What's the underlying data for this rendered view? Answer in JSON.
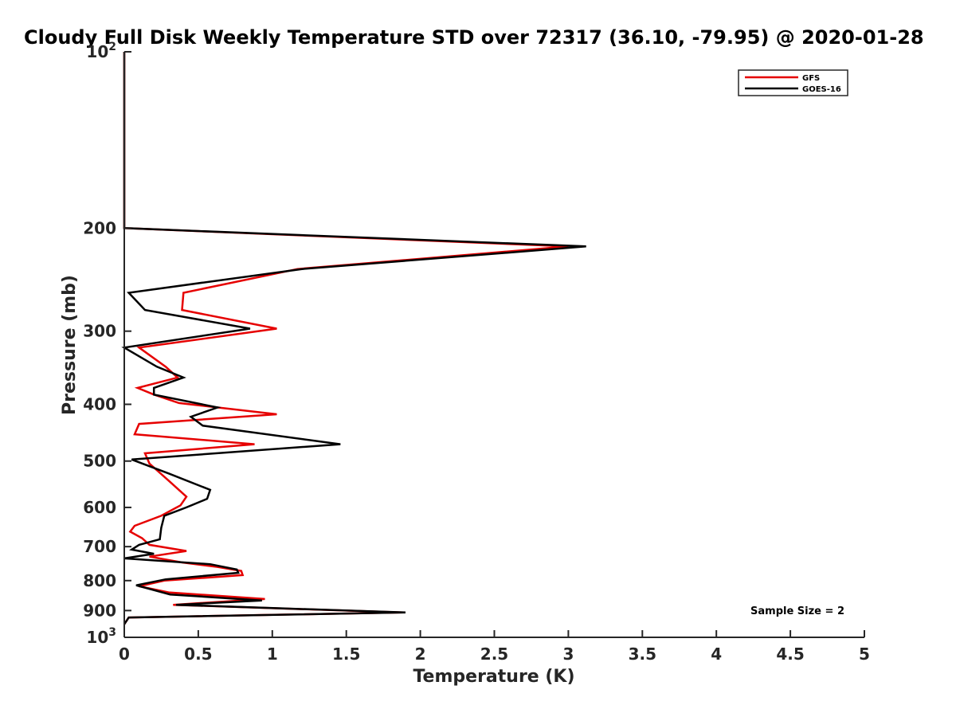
{
  "chart_data": {
    "type": "line",
    "title": "Cloudy Full Disk Weekly Temperature STD over 72317 (36.10, -79.95) @ 2020-01-28",
    "xlabel": "Temperature (K)",
    "ylabel": "Pressure (mb)",
    "xlim": [
      0,
      5
    ],
    "ylim": [
      1000,
      100
    ],
    "y_scale": "log",
    "y_reversed": true,
    "grid": false,
    "legend_position": "top-right",
    "x_ticks": [
      0,
      0.5,
      1,
      1.5,
      2,
      2.5,
      3,
      3.5,
      4,
      4.5,
      5
    ],
    "x_tick_labels": [
      "0",
      "0.5",
      "1",
      "1.5",
      "2",
      "2.5",
      "3",
      "3.5",
      "4",
      "4.5",
      "5"
    ],
    "y_ticks": [
      100,
      200,
      300,
      400,
      500,
      600,
      700,
      800,
      900,
      1000
    ],
    "y_tick_labels": [
      {
        "base": "10",
        "exp": "2"
      },
      {
        "base": "200",
        "exp": ""
      },
      {
        "base": "300",
        "exp": ""
      },
      {
        "base": "400",
        "exp": ""
      },
      {
        "base": "500",
        "exp": ""
      },
      {
        "base": "600",
        "exp": ""
      },
      {
        "base": "700",
        "exp": ""
      },
      {
        "base": "800",
        "exp": ""
      },
      {
        "base": "900",
        "exp": ""
      },
      {
        "base": "10",
        "exp": "3"
      }
    ],
    "annotation": "Sample Size = 2",
    "series": [
      {
        "name": "GFS",
        "color": "#e60000",
        "points": [
          [
            0.0,
            100
          ],
          [
            0.0,
            150
          ],
          [
            0.0,
            200
          ],
          [
            3.0,
            215
          ],
          [
            1.17,
            235
          ],
          [
            0.4,
            258
          ],
          [
            0.39,
            276
          ],
          [
            1.03,
            297
          ],
          [
            0.1,
            320
          ],
          [
            0.28,
            345
          ],
          [
            0.36,
            360
          ],
          [
            0.09,
            375
          ],
          [
            0.2,
            385
          ],
          [
            0.37,
            398
          ],
          [
            1.03,
            416
          ],
          [
            0.1,
            432
          ],
          [
            0.07,
            450
          ],
          [
            0.88,
            468
          ],
          [
            0.14,
            485
          ],
          [
            0.17,
            505
          ],
          [
            0.3,
            540
          ],
          [
            0.42,
            575
          ],
          [
            0.38,
            595
          ],
          [
            0.25,
            620
          ],
          [
            0.07,
            645
          ],
          [
            0.04,
            660
          ],
          [
            0.12,
            677
          ],
          [
            0.17,
            695
          ],
          [
            0.42,
            712
          ],
          [
            0.17,
            728
          ],
          [
            0.39,
            745
          ],
          [
            0.63,
            758
          ],
          [
            0.79,
            770
          ],
          [
            0.8,
            783
          ],
          [
            0.27,
            800
          ],
          [
            0.1,
            818
          ],
          [
            0.3,
            838
          ],
          [
            0.95,
            860
          ],
          [
            0.33,
            880
          ],
          [
            1.88,
            907
          ],
          [
            0.03,
            925
          ],
          [
            0.0,
            950
          ]
        ]
      },
      {
        "name": "GOES-16",
        "color": "#000000",
        "points": [
          [
            0.0,
            100
          ],
          [
            0.0,
            150
          ],
          [
            0.0,
            200
          ],
          [
            3.12,
            215
          ],
          [
            1.2,
            235
          ],
          [
            0.03,
            258
          ],
          [
            0.14,
            276
          ],
          [
            0.85,
            297
          ],
          [
            0.0,
            320
          ],
          [
            0.22,
            345
          ],
          [
            0.4,
            360
          ],
          [
            0.2,
            375
          ],
          [
            0.2,
            385
          ],
          [
            0.63,
            405
          ],
          [
            0.45,
            420
          ],
          [
            0.53,
            435
          ],
          [
            1.46,
            468
          ],
          [
            0.05,
            497
          ],
          [
            0.3,
            525
          ],
          [
            0.58,
            560
          ],
          [
            0.56,
            580
          ],
          [
            0.42,
            600
          ],
          [
            0.27,
            620
          ],
          [
            0.25,
            650
          ],
          [
            0.24,
            680
          ],
          [
            0.1,
            695
          ],
          [
            0.05,
            708
          ],
          [
            0.2,
            720
          ],
          [
            0.0,
            733
          ],
          [
            0.58,
            750
          ],
          [
            0.76,
            766
          ],
          [
            0.77,
            776
          ],
          [
            0.28,
            796
          ],
          [
            0.08,
            815
          ],
          [
            0.31,
            845
          ],
          [
            0.93,
            865
          ],
          [
            0.35,
            880
          ],
          [
            1.9,
            907
          ],
          [
            0.03,
            925
          ],
          [
            0.0,
            950
          ]
        ]
      }
    ]
  }
}
